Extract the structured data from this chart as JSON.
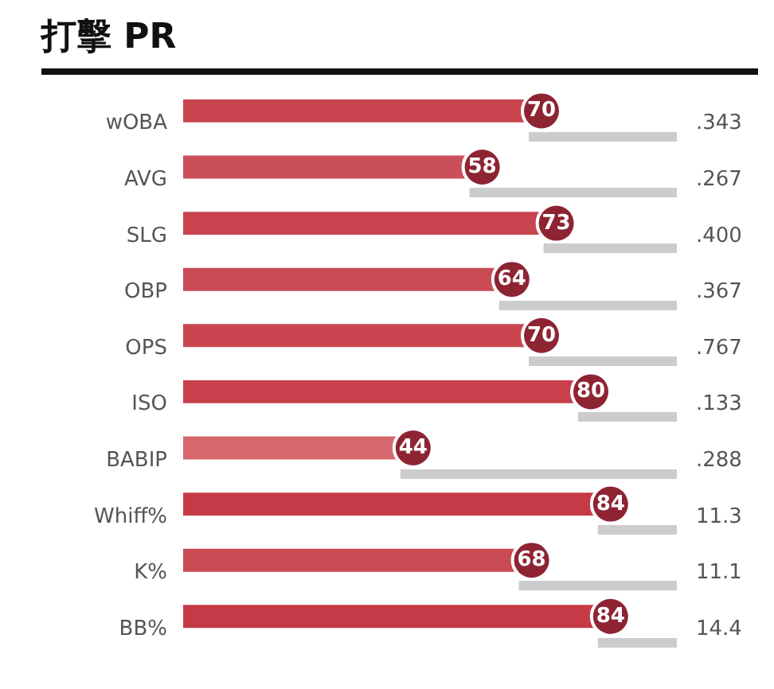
{
  "chart_data": {
    "type": "bar",
    "orientation": "horizontal",
    "title": "打擊 PR",
    "categories": [
      "wOBA",
      "AVG",
      "SLG",
      "OBP",
      "OPS",
      "ISO",
      "BABIP",
      "Whiff%",
      "K%",
      "BB%"
    ],
    "values": [
      70,
      58,
      73,
      64,
      70,
      80,
      44,
      84,
      68,
      84
    ],
    "colors": [
      "#c94650",
      "#ca4f58",
      "#c9444f",
      "#ca4b55",
      "#c94650",
      "#c8404c",
      "#d6676d",
      "#c63a47",
      "#ca4a53",
      "#c63a47"
    ],
    "data_labels": true,
    "annotations": [
      ".343",
      ".267",
      ".400",
      ".367",
      ".767",
      ".133",
      ".288",
      "11.3",
      "11.1",
      "14.4"
    ]
  }
}
